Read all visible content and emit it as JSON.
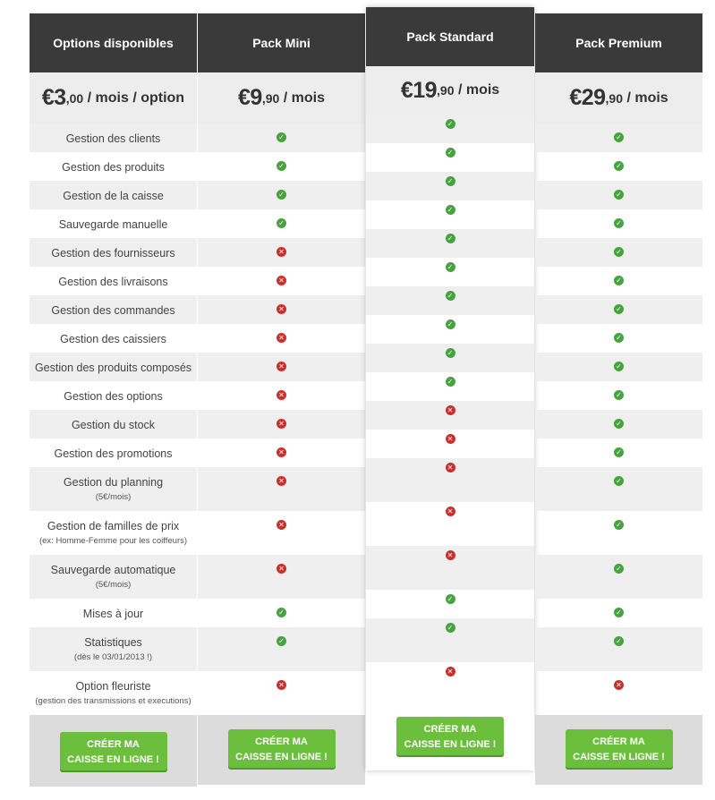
{
  "features": [
    {
      "label": "Gestion des clients",
      "sub": ""
    },
    {
      "label": "Gestion des produits",
      "sub": ""
    },
    {
      "label": "Gestion de la caisse",
      "sub": ""
    },
    {
      "label": "Sauvegarde manuelle",
      "sub": ""
    },
    {
      "label": "Gestion des fournisseurs",
      "sub": ""
    },
    {
      "label": "Gestion des livraisons",
      "sub": ""
    },
    {
      "label": "Gestion des commandes",
      "sub": ""
    },
    {
      "label": "Gestion des caissiers",
      "sub": ""
    },
    {
      "label": "Gestion des produits composés",
      "sub": ""
    },
    {
      "label": "Gestion des options",
      "sub": ""
    },
    {
      "label": "Gestion du stock",
      "sub": ""
    },
    {
      "label": "Gestion des promotions",
      "sub": ""
    },
    {
      "label": "Gestion du planning",
      "sub": "(5€/mois)"
    },
    {
      "label": "Gestion de familles de prix",
      "sub": "(ex: Homme-Femme pour les coiffeurs)"
    },
    {
      "label": "Sauvegarde automatique",
      "sub": "(5€/mois)"
    },
    {
      "label": "Mises à jour",
      "sub": ""
    },
    {
      "label": "Statistiques",
      "sub": "(dès le 03/01/2013 !)"
    },
    {
      "label": "Option fleuriste",
      "sub": "(gestion des transmissions et executions)"
    }
  ],
  "columns": [
    {
      "title": "Options disponibles",
      "price_big": "€3",
      "price_cents": ",00",
      "price_suffix": " / mois / option",
      "button": [
        "CRÉER MA",
        "CAISSE EN LIGNE !"
      ]
    },
    {
      "title": "Pack Mini",
      "price_big": "€9",
      "price_cents": ",90",
      "price_suffix": " / mois",
      "button": [
        "CRÉER MA",
        "CAISSE EN LIGNE !"
      ],
      "checks": [
        true,
        true,
        true,
        true,
        false,
        false,
        false,
        false,
        false,
        false,
        false,
        false,
        false,
        false,
        false,
        true,
        true,
        false
      ]
    },
    {
      "title": "Pack Standard",
      "price_big": "€19",
      "price_cents": ",90",
      "price_suffix": " / mois",
      "button": [
        "CRÉER MA",
        "CAISSE EN LIGNE !"
      ],
      "checks": [
        true,
        true,
        true,
        true,
        true,
        true,
        true,
        true,
        true,
        true,
        false,
        false,
        false,
        false,
        false,
        true,
        true,
        false
      ]
    },
    {
      "title": "Pack Premium",
      "price_big": "€29",
      "price_cents": ",90",
      "price_suffix": " / mois",
      "button": [
        "CRÉER MA",
        "CAISSE EN LIGNE !"
      ],
      "checks": [
        true,
        true,
        true,
        true,
        true,
        true,
        true,
        true,
        true,
        true,
        true,
        true,
        true,
        true,
        true,
        true,
        true,
        false
      ]
    }
  ],
  "icons": {
    "yes": "check-icon",
    "no": "cross-icon"
  },
  "colors": {
    "header": "#3a3a3a",
    "accent": "#6cbf3c",
    "yes": "#4aa142",
    "no": "#c9302c"
  }
}
